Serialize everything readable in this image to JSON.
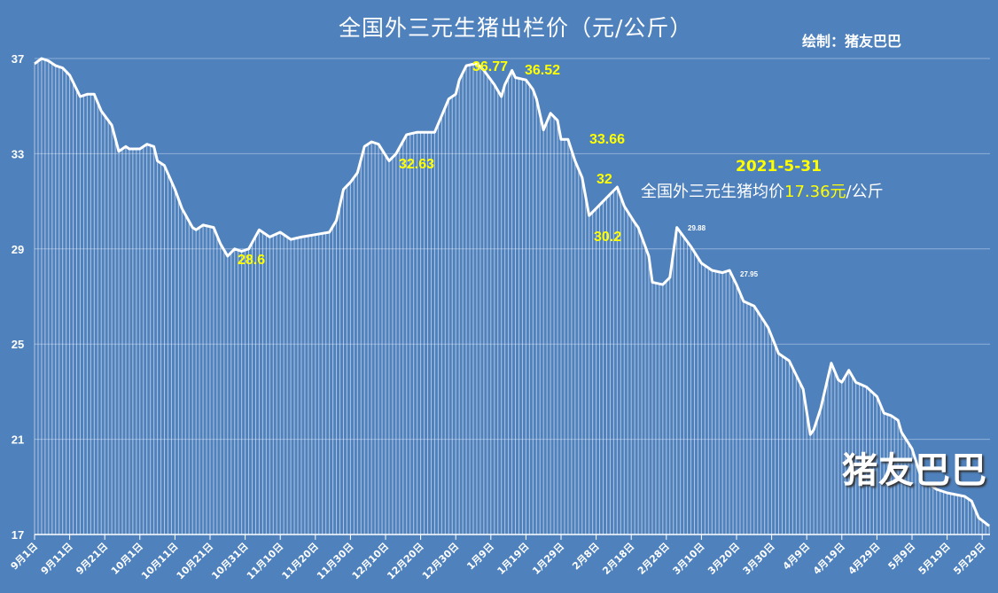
{
  "chart_data": {
    "type": "line",
    "title": "全国外三元生猪出栏价（元/公斤）",
    "credit": "绘制：猪友巴巴",
    "watermark": "猪友巴巴",
    "annotation_date": "2021-5-31",
    "annotation_text_prefix": "全国外三元生猪均价",
    "annotation_value": "17.36元",
    "annotation_text_suffix": "/公斤",
    "ylim": [
      17,
      37
    ],
    "yticks": [
      "17",
      "21",
      "25",
      "29",
      "33",
      "37"
    ],
    "grid": true,
    "xlim": [
      "2020-09-01",
      "2021-05-31"
    ],
    "xticks": [
      "9月1日",
      "9月11日",
      "9月21日",
      "10月1日",
      "10月11日",
      "10月21日",
      "10月31日",
      "11月10日",
      "11月20日",
      "11月30日",
      "12月10日",
      "12月20日",
      "12月30日",
      "1月9日",
      "1月19日",
      "1月29日",
      "2月8日",
      "2月18日",
      "2月28日",
      "3月10日",
      "3月20日",
      "3月30日",
      "4月9日",
      "4月19日",
      "4月29日",
      "5月9日",
      "5月19日",
      "5月29日"
    ],
    "colors": {
      "background": "#4f81bd",
      "line": "#ffffff",
      "highlight": "#ffff00",
      "grid": "#8fb0d8"
    },
    "point_labels": [
      {
        "text": "36.77",
        "date": "2021-01-05",
        "value": 36.77,
        "style": "big"
      },
      {
        "text": "36.52",
        "date": "2021-01-15",
        "value": 36.52,
        "style": "big"
      },
      {
        "text": "32.63",
        "date": "2020-12-11",
        "value": 32.63,
        "style": "big"
      },
      {
        "text": "28.6",
        "date": "2020-10-26",
        "value": 28.6,
        "style": "big"
      },
      {
        "text": "33.66",
        "date": "2021-02-06",
        "value": 33.66,
        "style": "big"
      },
      {
        "text": "32",
        "date": "2021-02-06",
        "value": 32,
        "style": "big"
      },
      {
        "text": "30.2",
        "date": "2021-02-06",
        "value": 30.2,
        "style": "big"
      },
      {
        "text": "29.88",
        "date": "2021-03-03",
        "value": 29.88,
        "style": "small"
      },
      {
        "text": "27.95",
        "date": "2021-03-18",
        "value": 27.95,
        "style": "small"
      }
    ],
    "series": [
      {
        "x": [
          "2020-09-01",
          "2020-09-03",
          "2020-09-05",
          "2020-09-07",
          "2020-09-09",
          "2020-09-11",
          "2020-09-14",
          "2020-09-16",
          "2020-09-18",
          "2020-09-20",
          "2020-09-23",
          "2020-09-25",
          "2020-09-27",
          "2020-09-28",
          "2020-10-01",
          "2020-10-03",
          "2020-10-05",
          "2020-10-06",
          "2020-10-08",
          "2020-10-11",
          "2020-10-13",
          "2020-10-16",
          "2020-10-17",
          "2020-10-19",
          "2020-10-22",
          "2020-10-24",
          "2020-10-26",
          "2020-10-28",
          "2020-10-30",
          "2020-11-01",
          "2020-11-04",
          "2020-11-07",
          "2020-11-10",
          "2020-11-13",
          "2020-11-16",
          "2020-11-20",
          "2020-11-24",
          "2020-11-26",
          "2020-11-28",
          "2020-11-30",
          "2020-12-02",
          "2020-12-04",
          "2020-12-06",
          "2020-12-08",
          "2020-12-11",
          "2020-12-13",
          "2020-12-16",
          "2020-12-19",
          "2020-12-21",
          "2020-12-24",
          "2020-12-26",
          "2020-12-28",
          "2020-12-30",
          "2020-12-31",
          "2021-01-02",
          "2021-01-05",
          "2021-01-07",
          "2021-01-10",
          "2021-01-12",
          "2021-01-13",
          "2021-01-15",
          "2021-01-16",
          "2021-01-19",
          "2021-01-21",
          "2021-01-22",
          "2021-01-24",
          "2021-01-26",
          "2021-01-28",
          "2021-01-29",
          "2021-01-31",
          "2021-02-02",
          "2021-02-04",
          "2021-02-06",
          "2021-02-08",
          "2021-02-10",
          "2021-02-12",
          "2021-02-14",
          "2021-02-16",
          "2021-02-19",
          "2021-02-20",
          "2021-02-23",
          "2021-02-24",
          "2021-02-27",
          "2021-03-01",
          "2021-03-03",
          "2021-03-05",
          "2021-03-07",
          "2021-03-10",
          "2021-03-13",
          "2021-03-16",
          "2021-03-18",
          "2021-03-20",
          "2021-03-22",
          "2021-03-25",
          "2021-03-29",
          "2021-04-01",
          "2021-04-04",
          "2021-04-06",
          "2021-04-08",
          "2021-04-10",
          "2021-04-11",
          "2021-04-13",
          "2021-04-16",
          "2021-04-18",
          "2021-04-19",
          "2021-04-21",
          "2021-04-23",
          "2021-04-26",
          "2021-04-29",
          "2021-05-01",
          "2021-05-03",
          "2021-05-05",
          "2021-05-06",
          "2021-05-09",
          "2021-05-12",
          "2021-05-14",
          "2021-05-16",
          "2021-05-19",
          "2021-05-24",
          "2021-05-26",
          "2021-05-28",
          "2021-05-31"
        ],
        "y": [
          36.78,
          37.0,
          36.9,
          36.7,
          36.6,
          36.3,
          35.4,
          35.5,
          35.5,
          34.8,
          34.2,
          33.1,
          33.3,
          33.2,
          33.2,
          33.4,
          33.3,
          32.7,
          32.5,
          31.5,
          30.7,
          29.9,
          29.8,
          30.0,
          29.9,
          29.2,
          28.7,
          29.0,
          28.9,
          29.0,
          29.8,
          29.5,
          29.7,
          29.4,
          29.5,
          29.6,
          29.7,
          30.2,
          31.5,
          31.8,
          32.2,
          33.3,
          33.5,
          33.4,
          32.7,
          33.0,
          33.8,
          33.9,
          33.9,
          33.9,
          34.6,
          35.3,
          35.5,
          36.1,
          36.7,
          36.8,
          36.5,
          35.9,
          35.4,
          35.9,
          36.5,
          36.2,
          36.1,
          35.7,
          35.3,
          34.0,
          34.7,
          34.4,
          33.6,
          33.6,
          32.7,
          32.0,
          30.4,
          30.7,
          31.0,
          31.3,
          31.6,
          30.8,
          30.1,
          29.9,
          28.7,
          27.6,
          27.5,
          27.8,
          29.9,
          29.5,
          29.1,
          28.4,
          28.1,
          28.0,
          28.1,
          27.5,
          26.8,
          26.6,
          25.7,
          24.6,
          24.3,
          23.7,
          23.1,
          21.2,
          21.4,
          22.3,
          24.2,
          23.5,
          23.4,
          23.9,
          23.4,
          23.2,
          22.8,
          22.1,
          22.0,
          21.8,
          21.3,
          20.6,
          19.2,
          19.1,
          18.9,
          18.75,
          18.6,
          18.4,
          17.7,
          17.36
        ]
      }
    ]
  }
}
